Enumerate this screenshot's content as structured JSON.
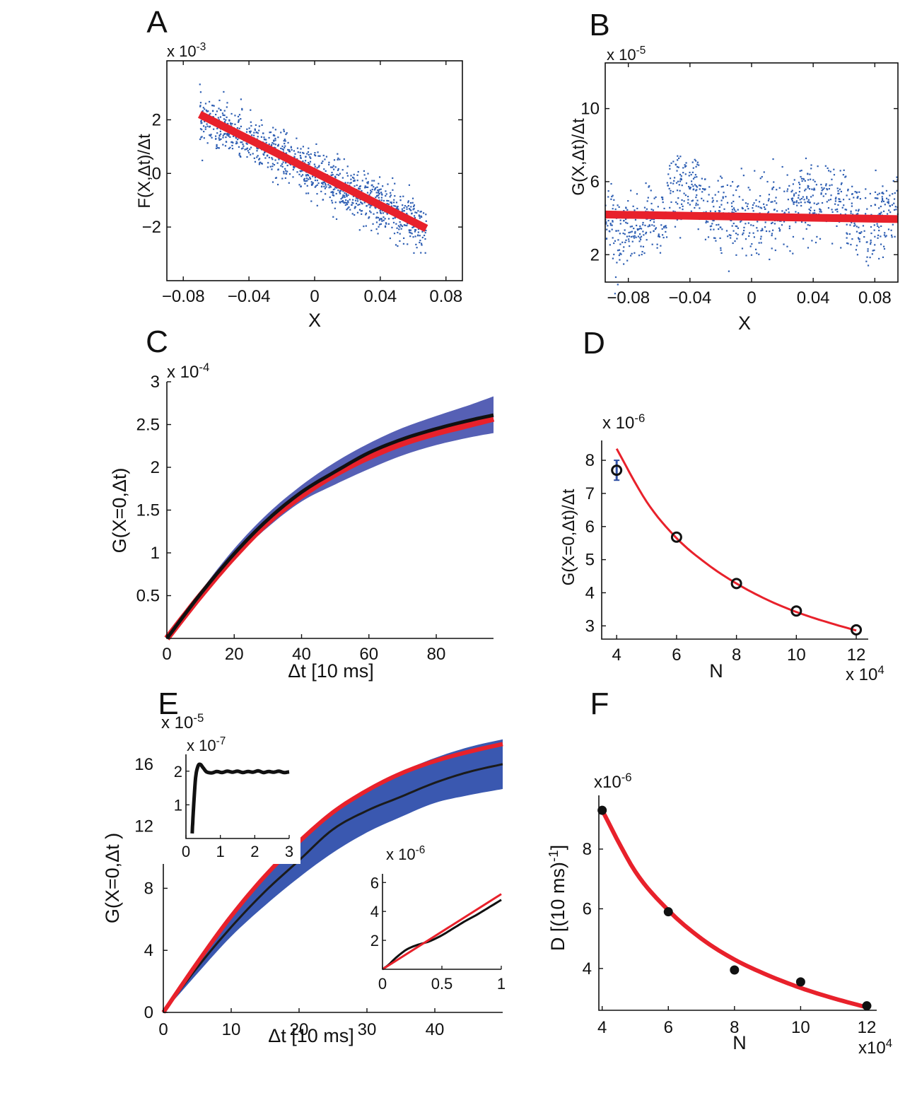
{
  "chart_data": [
    {
      "panel": "A",
      "type": "scatter",
      "xlabel": "X",
      "ylabel": "F(X,Δt)/Δt",
      "multiplier": "x 10-3",
      "xlim": [
        -0.09,
        0.09
      ],
      "ylim": [
        -4,
        4.2
      ],
      "xticks": [
        "−0.08",
        "−0.04",
        "0",
        "0.04",
        "0.08"
      ],
      "xtick_values": [
        -0.08,
        -0.04,
        0,
        0.04,
        0.08
      ],
      "yticks": [
        "−2",
        "0",
        "2"
      ],
      "ytick_values": [
        -2,
        0,
        2
      ],
      "scatter": {
        "color": "#2f5fb3",
        "x_range": [
          -0.07,
          0.068
        ],
        "noise_sd": 0.45,
        "slope": -30.0,
        "intercept": 0.0,
        "count": 1100
      },
      "fit_line": {
        "color": "#e8212b",
        "x": [
          -0.07,
          0.068
        ],
        "y": [
          2.2,
          -2.05
        ]
      }
    },
    {
      "panel": "B",
      "type": "scatter",
      "xlabel": "X",
      "ylabel": "G(X,Δt)/Δt",
      "multiplier": "x 10-5",
      "xlim": [
        -0.095,
        0.095
      ],
      "ylim": [
        0.5,
        12.5
      ],
      "xticks": [
        "−0.08",
        "−0.04",
        "0",
        "0.04",
        "0.08"
      ],
      "xtick_values": [
        -0.08,
        -0.04,
        0,
        0.04,
        0.08
      ],
      "yticks": [
        "2",
        "6",
        "10"
      ],
      "ytick_values": [
        2,
        6,
        10
      ],
      "scatter": {
        "color": "#2f5fb3",
        "x_range": [
          -0.095,
          0.095
        ],
        "base": 4.1,
        "count": 1000
      },
      "fit_line": {
        "color": "#e8212b",
        "x": [
          -0.095,
          0.095
        ],
        "y": [
          4.2,
          3.95
        ]
      }
    },
    {
      "panel": "C",
      "type": "area",
      "xlabel": "Δt [10 ms]",
      "ylabel": "G(X=0,Δt)",
      "multiplier": "x 10-4",
      "xlim": [
        0,
        97
      ],
      "ylim": [
        0,
        3
      ],
      "xticks": [
        "0",
        "20",
        "40",
        "60",
        "80"
      ],
      "xtick_values": [
        0,
        20,
        40,
        60,
        80
      ],
      "yticks": [
        "0.5",
        "1",
        "1.5",
        "2",
        "2.5",
        "3"
      ],
      "ytick_values": [
        0.5,
        1,
        1.5,
        2,
        2.5,
        3
      ],
      "x": [
        0,
        10,
        20,
        30,
        40,
        50,
        60,
        70,
        80,
        90,
        97
      ],
      "band": {
        "color": "#5660b5",
        "upper": [
          0,
          0.55,
          1.05,
          1.46,
          1.79,
          2.06,
          2.28,
          2.46,
          2.6,
          2.73,
          2.83
        ],
        "lower": [
          0,
          0.48,
          0.93,
          1.3,
          1.6,
          1.8,
          1.98,
          2.14,
          2.26,
          2.35,
          2.4
        ]
      },
      "series": [
        {
          "color": "#111111",
          "values": [
            0,
            0.52,
            0.99,
            1.39,
            1.71,
            1.95,
            2.17,
            2.33,
            2.45,
            2.55,
            2.61
          ]
        },
        {
          "color": "#e8212b",
          "values": [
            0,
            0.5,
            0.96,
            1.36,
            1.67,
            1.92,
            2.12,
            2.28,
            2.4,
            2.5,
            2.57
          ]
        }
      ]
    },
    {
      "panel": "D",
      "type": "scatter",
      "xlabel": "N",
      "ylabel": "G(X=0,Δt)/Δt",
      "multiplier": "x 10-6",
      "xmultiplier": "x 104",
      "xlim": [
        3.5,
        12.4
      ],
      "ylim": [
        2.6,
        8.6
      ],
      "xticks": [
        "4",
        "6",
        "8",
        "10",
        "12"
      ],
      "xtick_values": [
        4,
        6,
        8,
        10,
        12
      ],
      "yticks": [
        "3",
        "4",
        "5",
        "6",
        "7",
        "8"
      ],
      "ytick_values": [
        3,
        4,
        5,
        6,
        7,
        8
      ],
      "points": {
        "x": [
          4,
          6,
          8,
          10,
          12
        ],
        "y": [
          7.7,
          5.68,
          4.28,
          3.45,
          2.88
        ],
        "style": "open-circle",
        "color": "#111111"
      },
      "errorbar": {
        "x": 4,
        "y": 7.7,
        "low": 7.4,
        "high": 8.0,
        "color": "#2f4fa3"
      },
      "fit_curve": {
        "color": "#e8212b",
        "x": [
          4,
          5,
          6,
          7,
          8,
          9,
          10,
          11,
          12
        ],
        "y": [
          8.35,
          6.75,
          5.65,
          4.88,
          4.28,
          3.8,
          3.42,
          3.12,
          2.86
        ]
      }
    },
    {
      "panel": "E",
      "type": "area",
      "xlabel": "Δt [10 ms]",
      "ylabel": "G(X=0,Δt )",
      "multiplier": "x 10-5",
      "xlim": [
        0,
        50
      ],
      "ylim": [
        0,
        18
      ],
      "xticks": [
        "0",
        "10",
        "20",
        "30",
        "40"
      ],
      "xtick_values": [
        0,
        10,
        20,
        30,
        40
      ],
      "yticks": [
        "0",
        "4",
        "8",
        "12",
        "16"
      ],
      "ytick_values": [
        0,
        4,
        8,
        12,
        16
      ],
      "x": [
        0,
        5,
        10,
        15,
        20,
        25,
        30,
        35,
        40,
        45,
        50
      ],
      "band": {
        "color": "#3a58b0",
        "upper": [
          0,
          3.3,
          6.3,
          8.8,
          11.0,
          12.9,
          14.4,
          15.5,
          16.4,
          17.1,
          17.6
        ],
        "lower": [
          0,
          2.5,
          4.9,
          6.9,
          8.7,
          10.3,
          11.6,
          12.6,
          13.5,
          14.0,
          14.4
        ]
      },
      "series": [
        {
          "color": "#1b1b1b",
          "values": [
            0,
            2.9,
            5.5,
            7.8,
            9.8,
            11.8,
            13.0,
            13.9,
            14.8,
            15.5,
            16.0
          ]
        },
        {
          "color": "#e8212b",
          "values": [
            0,
            3.2,
            6.2,
            8.8,
            11.0,
            12.9,
            14.3,
            15.4,
            16.2,
            16.8,
            17.3
          ]
        }
      ],
      "inset1": {
        "multiplier": "x 10-7",
        "xlim": [
          0,
          3
        ],
        "ylim": [
          0,
          2.5
        ],
        "xticks": [
          "0",
          "1",
          "2",
          "3"
        ],
        "xtick_values": [
          0,
          1,
          2,
          3
        ],
        "yticks": [
          "1",
          "2"
        ],
        "ytick_values": [
          1,
          2
        ],
        "series": {
          "color": "#111111",
          "x": [
            0.18,
            0.22,
            0.28,
            0.35,
            0.42,
            0.5,
            0.6,
            0.75,
            0.9,
            1.05,
            1.2,
            1.35,
            1.5,
            1.65,
            1.8,
            1.95,
            2.1,
            2.25,
            2.4,
            2.55,
            2.7,
            2.85,
            3.0
          ],
          "y": [
            0.15,
            0.9,
            1.8,
            2.15,
            2.2,
            2.1,
            1.98,
            1.95,
            1.99,
            1.96,
            2.0,
            1.97,
            2.0,
            1.96,
            1.99,
            1.97,
            2.01,
            1.96,
            1.99,
            1.97,
            2.0,
            1.96,
            1.98
          ]
        }
      },
      "inset2": {
        "multiplier": "x 10-6",
        "xlim": [
          0,
          1
        ],
        "ylim": [
          0,
          6.6
        ],
        "xticks": [
          "0",
          "0.5",
          "1"
        ],
        "xtick_values": [
          0,
          0.5,
          1
        ],
        "yticks": [
          "2",
          "4",
          "6"
        ],
        "ytick_values": [
          2,
          4,
          6
        ],
        "series": [
          {
            "color": "#111111",
            "x": [
              0,
              0.05,
              0.1,
              0.15,
              0.2,
              0.25,
              0.3,
              0.35,
              0.4,
              0.5,
              0.6,
              0.7,
              0.8,
              0.9,
              1.0
            ],
            "y": [
              0,
              0.3,
              0.7,
              1.05,
              1.35,
              1.55,
              1.7,
              1.82,
              1.95,
              2.35,
              2.85,
              3.35,
              3.8,
              4.3,
              4.8
            ]
          },
          {
            "color": "#e8212b",
            "x": [
              0,
              1.0
            ],
            "y": [
              0,
              5.2
            ]
          }
        ]
      }
    },
    {
      "panel": "F",
      "type": "scatter",
      "xlabel": "N",
      "ylabel": "D [(10 ms)-1]",
      "multiplier": "x10-6",
      "xmultiplier": "x104",
      "xlim": [
        3.9,
        12.3
      ],
      "ylim": [
        2.6,
        9.8
      ],
      "xticks": [
        "4",
        "6",
        "8",
        "10",
        "12"
      ],
      "xtick_values": [
        4,
        6,
        8,
        10,
        12
      ],
      "yticks": [
        "4",
        "6",
        "8"
      ],
      "ytick_values": [
        4,
        6,
        8
      ],
      "points": {
        "x": [
          4,
          6,
          8,
          10,
          12
        ],
        "y": [
          9.3,
          5.9,
          3.95,
          3.55,
          2.75
        ],
        "style": "filled-circle",
        "color": "#111111"
      },
      "fit_curve": {
        "color": "#e8212b",
        "x": [
          4,
          5,
          6,
          7,
          8,
          9,
          10,
          11,
          12
        ],
        "y": [
          9.3,
          7.25,
          5.95,
          5.0,
          4.3,
          3.78,
          3.35,
          3.0,
          2.7
        ]
      }
    }
  ]
}
